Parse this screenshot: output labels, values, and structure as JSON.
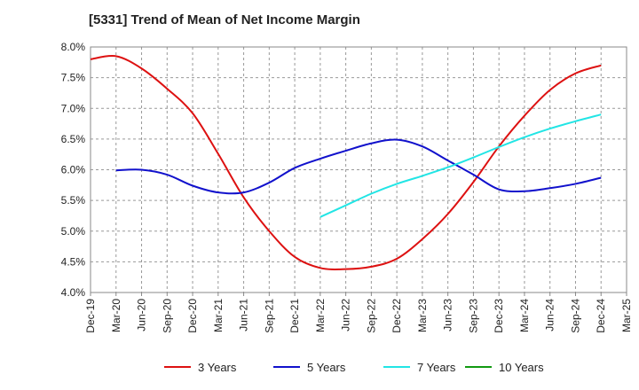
{
  "chart_data": {
    "type": "line",
    "title": "[5331]  Trend of Mean of Net Income Margin",
    "xlabel": "",
    "ylabel": "",
    "ylim": [
      4.0,
      8.0
    ],
    "y_ticks": [
      "4.0%",
      "4.5%",
      "5.0%",
      "5.5%",
      "6.0%",
      "6.5%",
      "7.0%",
      "7.5%",
      "8.0%"
    ],
    "categories": [
      "Dec-19",
      "Mar-20",
      "Jun-20",
      "Sep-20",
      "Dec-20",
      "Mar-21",
      "Jun-21",
      "Sep-21",
      "Dec-21",
      "Mar-22",
      "Jun-22",
      "Sep-22",
      "Dec-22",
      "Mar-23",
      "Jun-23",
      "Sep-23",
      "Dec-23",
      "Mar-24",
      "Jun-24",
      "Sep-24",
      "Dec-24",
      "Mar-25"
    ],
    "grid": true,
    "legend_position": "bottom",
    "series": [
      {
        "name": "3 Years",
        "color": "#dd1111",
        "values": [
          7.8,
          7.85,
          7.65,
          7.32,
          6.92,
          6.26,
          5.55,
          5.0,
          4.58,
          4.4,
          4.38,
          4.42,
          4.55,
          4.87,
          5.28,
          5.8,
          6.38,
          6.88,
          7.3,
          7.57,
          7.7,
          null
        ]
      },
      {
        "name": "5 Years",
        "color": "#1111cc",
        "values": [
          null,
          5.99,
          6.0,
          5.92,
          5.74,
          5.63,
          5.63,
          5.79,
          6.03,
          6.18,
          6.31,
          6.43,
          6.49,
          6.38,
          6.15,
          5.92,
          5.68,
          5.65,
          5.7,
          5.77,
          5.87,
          null
        ]
      },
      {
        "name": "7 Years",
        "color": "#22e5e5",
        "values": [
          null,
          null,
          null,
          null,
          null,
          null,
          null,
          null,
          null,
          5.23,
          5.42,
          5.61,
          5.77,
          5.9,
          6.04,
          6.2,
          6.37,
          6.53,
          6.67,
          6.79,
          6.9,
          null
        ]
      },
      {
        "name": "10 Years",
        "color": "#119911",
        "values": [
          null,
          null,
          null,
          null,
          null,
          null,
          null,
          null,
          null,
          null,
          null,
          null,
          null,
          null,
          null,
          null,
          null,
          null,
          null,
          null,
          null,
          null
        ]
      }
    ]
  }
}
